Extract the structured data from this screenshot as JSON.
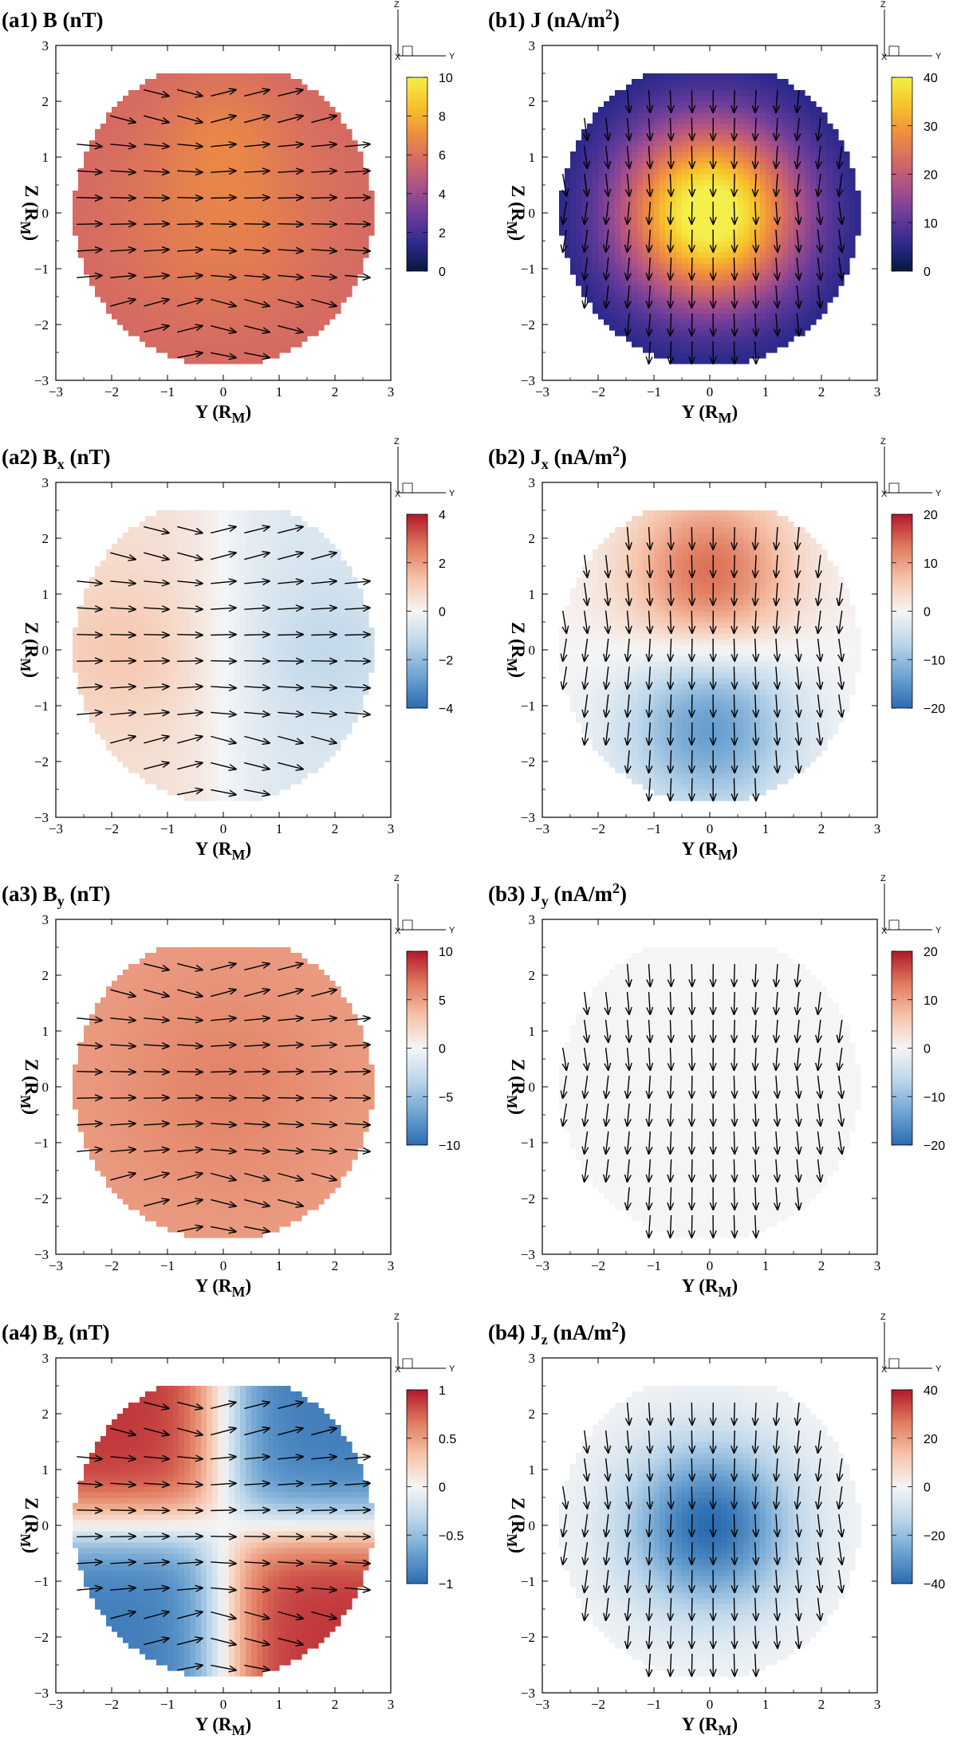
{
  "axes_text": {
    "x_label": "Y (R",
    "x_label_sub": "M",
    "x_label_end": ")",
    "y_label": "Z (R",
    "y_label_sub": "M",
    "y_label_end": ")",
    "triad_z": "Z",
    "triad_y": "Y",
    "triad_x": "X"
  },
  "chart_data": [
    {
      "type": "heatmap",
      "panel": "a1",
      "title": [
        "(a1) B",
        "",
        " (nT)"
      ],
      "cmap": "plasma_like",
      "colorbar": {
        "min": 0,
        "max": 10,
        "ticks": [
          0,
          2,
          4,
          6,
          8,
          10
        ]
      },
      "field": "Bmag",
      "arrows": "B",
      "xlim": [
        -3,
        3
      ],
      "ylim": [
        -3,
        3
      ],
      "xticks": [
        -3,
        -2,
        -1,
        0,
        1,
        2,
        3
      ],
      "yticks": [
        -3,
        -2,
        -1,
        0,
        1,
        2,
        3
      ]
    },
    {
      "type": "heatmap",
      "panel": "b1",
      "title": [
        "(b1) J",
        "",
        " (nA/m",
        "2",
        ")"
      ],
      "cmap": "plasma_like",
      "colorbar": {
        "min": 0,
        "max": 40,
        "ticks": [
          0,
          10,
          20,
          30,
          40
        ]
      },
      "field": "Jmag",
      "arrows": "J",
      "xlim": [
        -3,
        3
      ],
      "ylim": [
        -3,
        3
      ],
      "xticks": [
        -3,
        -2,
        -1,
        0,
        1,
        2,
        3
      ],
      "yticks": [
        -3,
        -2,
        -1,
        0,
        1,
        2,
        3
      ]
    },
    {
      "type": "heatmap",
      "panel": "a2",
      "title": [
        "(a2) B",
        "x",
        " (nT)"
      ],
      "cmap": "diverging",
      "colorbar": {
        "min": -4,
        "max": 4,
        "ticks": [
          -4,
          -2,
          0,
          2,
          4
        ]
      },
      "field": "Bx",
      "arrows": "B",
      "xlim": [
        -3,
        3
      ],
      "ylim": [
        -3,
        3
      ],
      "xticks": [
        -3,
        -2,
        -1,
        0,
        1,
        2,
        3
      ],
      "yticks": [
        -3,
        -2,
        -1,
        0,
        1,
        2,
        3
      ]
    },
    {
      "type": "heatmap",
      "panel": "b2",
      "title": [
        "(b2) J",
        "x",
        " (nA/m",
        "2",
        ")"
      ],
      "cmap": "diverging",
      "colorbar": {
        "min": -20,
        "max": 20,
        "ticks": [
          -20,
          -10,
          0,
          10,
          20
        ]
      },
      "field": "Jx",
      "arrows": "J",
      "xlim": [
        -3,
        3
      ],
      "ylim": [
        -3,
        3
      ],
      "xticks": [
        -3,
        -2,
        -1,
        0,
        1,
        2,
        3
      ],
      "yticks": [
        -3,
        -2,
        -1,
        0,
        1,
        2,
        3
      ]
    },
    {
      "type": "heatmap",
      "panel": "a3",
      "title": [
        "(a3) B",
        "y",
        " (nT)"
      ],
      "cmap": "diverging",
      "colorbar": {
        "min": -10,
        "max": 10,
        "ticks": [
          -10,
          -5,
          0,
          5,
          10
        ]
      },
      "field": "By",
      "arrows": "B",
      "xlim": [
        -3,
        3
      ],
      "ylim": [
        -3,
        3
      ],
      "xticks": [
        -3,
        -2,
        -1,
        0,
        1,
        2,
        3
      ],
      "yticks": [
        -3,
        -2,
        -1,
        0,
        1,
        2,
        3
      ]
    },
    {
      "type": "heatmap",
      "panel": "b3",
      "title": [
        "(b3) J",
        "y",
        " (nA/m",
        "2",
        ")"
      ],
      "cmap": "diverging",
      "colorbar": {
        "min": -20,
        "max": 20,
        "ticks": [
          -20,
          -10,
          0,
          10,
          20
        ]
      },
      "field": "Jy",
      "arrows": "J",
      "xlim": [
        -3,
        3
      ],
      "ylim": [
        -3,
        3
      ],
      "xticks": [
        -3,
        -2,
        -1,
        0,
        1,
        2,
        3
      ],
      "yticks": [
        -3,
        -2,
        -1,
        0,
        1,
        2,
        3
      ]
    },
    {
      "type": "heatmap",
      "panel": "a4",
      "title": [
        "(a4) B",
        "z",
        " (nT)"
      ],
      "cmap": "diverging",
      "colorbar": {
        "min": -1,
        "max": 1,
        "ticks": [
          -1,
          -0.5,
          0,
          0.5,
          1
        ]
      },
      "field": "Bz",
      "arrows": "B",
      "xlim": [
        -3,
        3
      ],
      "ylim": [
        -3,
        3
      ],
      "xticks": [
        -3,
        -2,
        -1,
        0,
        1,
        2,
        3
      ],
      "yticks": [
        -3,
        -2,
        -1,
        0,
        1,
        2,
        3
      ]
    },
    {
      "type": "heatmap",
      "panel": "b4",
      "title": [
        "(b4) J",
        "z",
        " (nA/m",
        "2",
        ")"
      ],
      "cmap": "diverging",
      "colorbar": {
        "min": -40,
        "max": 40,
        "ticks": [
          -40,
          -20,
          0,
          20,
          40
        ]
      },
      "field": "Jz",
      "arrows": "J",
      "xlim": [
        -3,
        3
      ],
      "ylim": [
        -3,
        3
      ],
      "xticks": [
        -3,
        -2,
        -1,
        0,
        1,
        2,
        3
      ],
      "yticks": [
        -3,
        -2,
        -1,
        0,
        1,
        2,
        3
      ]
    }
  ],
  "colors": {
    "plasma_like": [
      "#05183c",
      "#2e2a8c",
      "#6a3c9a",
      "#a8508a",
      "#d56a63",
      "#f0903e",
      "#f7c42a",
      "#f4ef4a"
    ],
    "diverging": [
      "#2b6cb0",
      "#6fa4d2",
      "#bcd6ea",
      "#f5f5f5",
      "#f6c3a9",
      "#e07a5f",
      "#b2182b"
    ]
  }
}
